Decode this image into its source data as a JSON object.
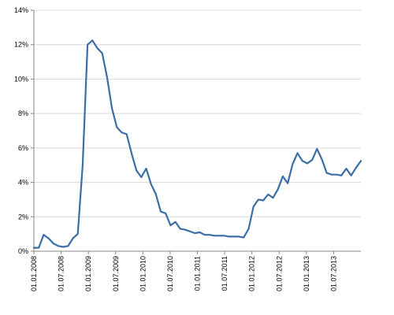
{
  "chart_data": {
    "type": "line",
    "title": "",
    "xlabel": "",
    "ylabel": "",
    "ylim": [
      0,
      14
    ],
    "ytick_labels": [
      "0%",
      "2%",
      "4%",
      "6%",
      "8%",
      "10%",
      "12%",
      "14%"
    ],
    "ytick_values": [
      0,
      2,
      4,
      6,
      8,
      10,
      12,
      14
    ],
    "xtick_labels": [
      "01.01.2008",
      "01.07.2008",
      "01.01.2009",
      "01.07.2009",
      "01.01.2010",
      "01.07.2010",
      "01.01.2011",
      "01.07.2011",
      "01.01.2012",
      "01.07.2012",
      "01.01.2013",
      "01.07.2013"
    ],
    "grid": true,
    "legend": "none",
    "colors": {
      "line": "#3a6ea5",
      "grid": "#d9d9d9",
      "axis": "#868686"
    },
    "series": [
      {
        "values": [
          0.2,
          0.2,
          0.95,
          0.75,
          0.45,
          0.3,
          0.25,
          0.3,
          0.75,
          1.0,
          5.0,
          12.0,
          12.25,
          11.8,
          11.5,
          10.1,
          8.3,
          7.2,
          6.9,
          6.8,
          5.7,
          4.7,
          4.3,
          4.8,
          3.9,
          3.3,
          2.3,
          2.2,
          1.5,
          1.7,
          1.3,
          1.25,
          1.15,
          1.05,
          1.1,
          0.95,
          0.95,
          0.9,
          0.9,
          0.9,
          0.85,
          0.85,
          0.85,
          0.8,
          1.3,
          2.6,
          3.0,
          2.95,
          3.3,
          3.1,
          3.6,
          4.35,
          3.95,
          5.05,
          5.7,
          5.25,
          5.1,
          5.3,
          5.95,
          5.35,
          4.55,
          4.45,
          4.45,
          4.4,
          4.8,
          4.4,
          4.85,
          5.25
        ]
      }
    ]
  }
}
